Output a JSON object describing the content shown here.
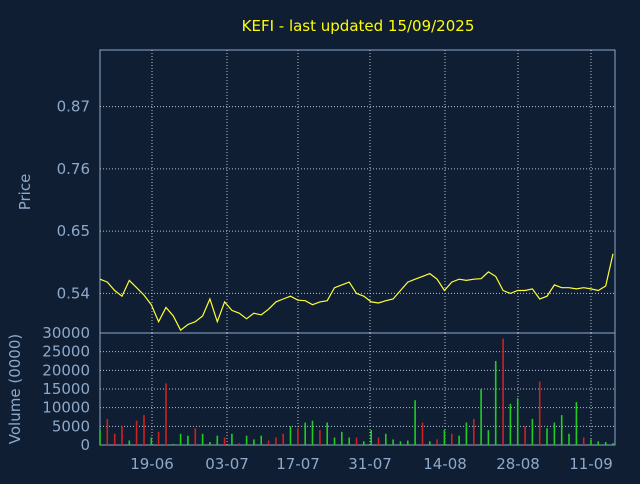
{
  "colors": {
    "background": "#0f1e33",
    "frame": "#8ea9c9",
    "grid": "#b4c3d6",
    "title": "#ffff00",
    "axis_text": "#8ea9c9",
    "price_line": "#ffff33",
    "volume_up": "#22cc22",
    "volume_down": "#cc2222"
  },
  "chart_data": [
    {
      "type": "line",
      "title": "KEFI - last updated 15/09/2025",
      "ylabel": "Price",
      "ylim": [
        0.47,
        0.97
      ],
      "yticks": [
        0.54,
        0.65,
        0.76,
        0.87
      ],
      "ytick_labels": [
        "0.54",
        "0.65",
        "0.76",
        "0.87"
      ],
      "grid": true,
      "x": [
        "09-06",
        "10-06",
        "11-06",
        "12-06",
        "13-06",
        "16-06",
        "17-06",
        "18-06",
        "19-06",
        "20-06",
        "23-06",
        "24-06",
        "25-06",
        "26-06",
        "27-06",
        "30-06",
        "01-07",
        "02-07",
        "03-07",
        "04-07",
        "07-07",
        "08-07",
        "09-07",
        "10-07",
        "11-07",
        "14-07",
        "15-07",
        "16-07",
        "17-07",
        "18-07",
        "21-07",
        "22-07",
        "23-07",
        "24-07",
        "25-07",
        "28-07",
        "29-07",
        "30-07",
        "31-07",
        "01-08",
        "04-08",
        "05-08",
        "06-08",
        "07-08",
        "08-08",
        "11-08",
        "12-08",
        "13-08",
        "14-08",
        "15-08",
        "18-08",
        "19-08",
        "20-08",
        "21-08",
        "22-08",
        "25-08",
        "26-08",
        "27-08",
        "28-08",
        "29-08",
        "01-09",
        "02-09",
        "03-09",
        "04-09",
        "05-09",
        "08-09",
        "09-09",
        "10-09",
        "11-09",
        "12-09",
        "15-09"
      ],
      "values": [
        0.565,
        0.56,
        0.545,
        0.535,
        0.563,
        0.55,
        0.537,
        0.52,
        0.49,
        0.515,
        0.5,
        0.475,
        0.485,
        0.49,
        0.5,
        0.53,
        0.49,
        0.525,
        0.51,
        0.505,
        0.495,
        0.505,
        0.502,
        0.512,
        0.525,
        0.53,
        0.535,
        0.528,
        0.527,
        0.52,
        0.525,
        0.527,
        0.55,
        0.555,
        0.56,
        0.54,
        0.535,
        0.525,
        0.523,
        0.527,
        0.53,
        0.545,
        0.56,
        0.565,
        0.57,
        0.575,
        0.565,
        0.545,
        0.56,
        0.565,
        0.563,
        0.565,
        0.566,
        0.578,
        0.57,
        0.545,
        0.54,
        0.545,
        0.545,
        0.548,
        0.53,
        0.535,
        0.555,
        0.55,
        0.55,
        0.548,
        0.55,
        0.548,
        0.545,
        0.553,
        0.61
      ]
    },
    {
      "type": "bar",
      "ylabel": "Volume (0000)",
      "ylim": [
        0,
        30000
      ],
      "yticks": [
        0,
        5000,
        10000,
        15000,
        20000,
        25000,
        30000
      ],
      "ytick_labels": [
        "0",
        "5000",
        "10000",
        "15000",
        "20000",
        "25000",
        "30000"
      ],
      "xtick_labels": [
        "19-06",
        "03-07",
        "17-07",
        "31-07",
        "14-08",
        "28-08",
        "11-09"
      ],
      "grid": true
    }
  ]
}
